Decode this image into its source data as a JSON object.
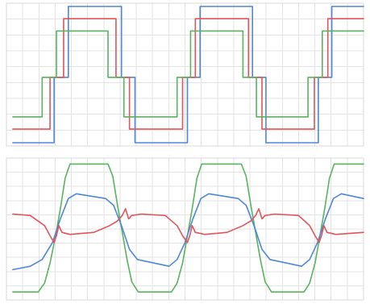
{
  "chart_data": [
    {
      "type": "line",
      "title": "",
      "xlabel": "",
      "ylabel": "",
      "xlim": [
        0,
        450
      ],
      "ylim": [
        0,
        1
      ],
      "grid": true,
      "legend": "none",
      "series": [
        {
          "color": "#4f86d8",
          "points": [
            [
              8,
              0
            ],
            [
              60,
              0
            ],
            [
              60,
              0.48
            ],
            [
              78,
              0.48
            ],
            [
              78,
              1
            ],
            [
              145,
              1
            ],
            [
              145,
              0.48
            ],
            [
              162,
              0.48
            ],
            [
              162,
              0
            ],
            [
              228,
              0
            ],
            [
              228,
              0.48
            ],
            [
              244,
              0.48
            ],
            [
              244,
              1
            ],
            [
              310,
              1
            ],
            [
              310,
              0.48
            ],
            [
              327,
              0.48
            ],
            [
              327,
              0
            ],
            [
              393,
              0
            ],
            [
              393,
              0.48
            ],
            [
              410,
              0.48
            ],
            [
              410,
              1
            ],
            [
              450,
              1
            ]
          ]
        },
        {
          "color": "#e2545a",
          "points": [
            [
              8,
              0.1
            ],
            [
              55,
              0.1
            ],
            [
              55,
              0.48
            ],
            [
              72,
              0.48
            ],
            [
              72,
              0.91
            ],
            [
              138,
              0.91
            ],
            [
              138,
              0.48
            ],
            [
              155,
              0.48
            ],
            [
              155,
              0.1
            ],
            [
              222,
              0.1
            ],
            [
              222,
              0.48
            ],
            [
              238,
              0.48
            ],
            [
              238,
              0.91
            ],
            [
              305,
              0.91
            ],
            [
              305,
              0.48
            ],
            [
              322,
              0.48
            ],
            [
              322,
              0.1
            ],
            [
              388,
              0.1
            ],
            [
              388,
              0.48
            ],
            [
              405,
              0.48
            ],
            [
              405,
              0.91
            ],
            [
              450,
              0.91
            ]
          ]
        },
        {
          "color": "#58b45f",
          "points": [
            [
              8,
              0.19
            ],
            [
              45,
              0.19
            ],
            [
              45,
              0.48
            ],
            [
              63,
              0.48
            ],
            [
              63,
              0.82
            ],
            [
              128,
              0.82
            ],
            [
              128,
              0.48
            ],
            [
              148,
              0.48
            ],
            [
              148,
              0.19
            ],
            [
              215,
              0.19
            ],
            [
              215,
              0.48
            ],
            [
              232,
              0.48
            ],
            [
              232,
              0.82
            ],
            [
              298,
              0.82
            ],
            [
              298,
              0.48
            ],
            [
              315,
              0.48
            ],
            [
              315,
              0.19
            ],
            [
              380,
              0.19
            ],
            [
              380,
              0.48
            ],
            [
              398,
              0.48
            ],
            [
              398,
              0.82
            ],
            [
              450,
              0.82
            ]
          ]
        }
      ]
    },
    {
      "type": "line",
      "title": "",
      "xlabel": "",
      "ylabel": "",
      "xlim": [
        0,
        450
      ],
      "ylim": [
        -1,
        1
      ],
      "grid": true,
      "legend": "none",
      "series": [
        {
          "color": "#58b45f",
          "points": [
            [
              8,
              -0.93
            ],
            [
              40,
              -0.93
            ],
            [
              48,
              -0.8
            ],
            [
              55,
              -0.5
            ],
            [
              62,
              -0.1
            ],
            [
              68,
              0.3
            ],
            [
              74,
              0.75
            ],
            [
              80,
              0.96
            ],
            [
              128,
              0.96
            ],
            [
              134,
              0.78
            ],
            [
              140,
              0.35
            ],
            [
              146,
              -0.05
            ],
            [
              152,
              -0.45
            ],
            [
              158,
              -0.78
            ],
            [
              166,
              -0.93
            ],
            [
              208,
              -0.93
            ],
            [
              215,
              -0.8
            ],
            [
              222,
              -0.5
            ],
            [
              228,
              -0.1
            ],
            [
              234,
              0.3
            ],
            [
              240,
              0.75
            ],
            [
              246,
              0.96
            ],
            [
              296,
              0.96
            ],
            [
              302,
              0.78
            ],
            [
              308,
              0.35
            ],
            [
              314,
              -0.05
            ],
            [
              320,
              -0.45
            ],
            [
              326,
              -0.78
            ],
            [
              334,
              -0.93
            ],
            [
              375,
              -0.93
            ],
            [
              382,
              -0.8
            ],
            [
              389,
              -0.5
            ],
            [
              395,
              -0.1
            ],
            [
              401,
              0.3
            ],
            [
              407,
              0.75
            ],
            [
              413,
              0.96
            ],
            [
              450,
              0.96
            ]
          ]
        },
        {
          "color": "#4f86d8",
          "points": [
            [
              8,
              -0.6
            ],
            [
              30,
              -0.55
            ],
            [
              45,
              -0.45
            ],
            [
              58,
              -0.2
            ],
            [
              68,
              0.15
            ],
            [
              78,
              0.45
            ],
            [
              88,
              0.52
            ],
            [
              125,
              0.45
            ],
            [
              135,
              0.35
            ],
            [
              145,
              0.05
            ],
            [
              155,
              -0.3
            ],
            [
              165,
              -0.45
            ],
            [
              205,
              -0.55
            ],
            [
              215,
              -0.45
            ],
            [
              225,
              -0.2
            ],
            [
              235,
              0.15
            ],
            [
              245,
              0.45
            ],
            [
              255,
              0.52
            ],
            [
              292,
              0.45
            ],
            [
              302,
              0.35
            ],
            [
              312,
              0.05
            ],
            [
              322,
              -0.3
            ],
            [
              332,
              -0.45
            ],
            [
              372,
              -0.55
            ],
            [
              382,
              -0.45
            ],
            [
              392,
              -0.2
            ],
            [
              402,
              0.15
            ],
            [
              412,
              0.45
            ],
            [
              422,
              0.52
            ],
            [
              450,
              0.45
            ]
          ]
        },
        {
          "color": "#e2545a",
          "points": [
            [
              8,
              0.22
            ],
            [
              30,
              0.2
            ],
            [
              48,
              0.05
            ],
            [
              55,
              -0.1
            ],
            [
              60,
              -0.2
            ],
            [
              63,
              -0.1
            ],
            [
              66,
              0.05
            ],
            [
              70,
              -0.05
            ],
            [
              80,
              -0.08
            ],
            [
              110,
              -0.05
            ],
            [
              130,
              0.05
            ],
            [
              140,
              0.12
            ],
            [
              146,
              0.2
            ],
            [
              150,
              0.3
            ],
            [
              154,
              0.15
            ],
            [
              158,
              0.2
            ],
            [
              170,
              0.22
            ],
            [
              200,
              0.2
            ],
            [
              215,
              0.05
            ],
            [
              222,
              -0.1
            ],
            [
              228,
              -0.2
            ],
            [
              231,
              -0.1
            ],
            [
              234,
              0.05
            ],
            [
              238,
              -0.05
            ],
            [
              250,
              -0.08
            ],
            [
              278,
              -0.05
            ],
            [
              298,
              0.05
            ],
            [
              308,
              0.12
            ],
            [
              314,
              0.2
            ],
            [
              318,
              0.3
            ],
            [
              322,
              0.15
            ],
            [
              326,
              0.2
            ],
            [
              338,
              0.22
            ],
            [
              368,
              0.2
            ],
            [
              382,
              0.05
            ],
            [
              389,
              -0.1
            ],
            [
              394,
              -0.2
            ],
            [
              397,
              -0.1
            ],
            [
              400,
              0.05
            ],
            [
              404,
              -0.05
            ],
            [
              415,
              -0.08
            ],
            [
              450,
              -0.05
            ]
          ]
        }
      ]
    }
  ]
}
